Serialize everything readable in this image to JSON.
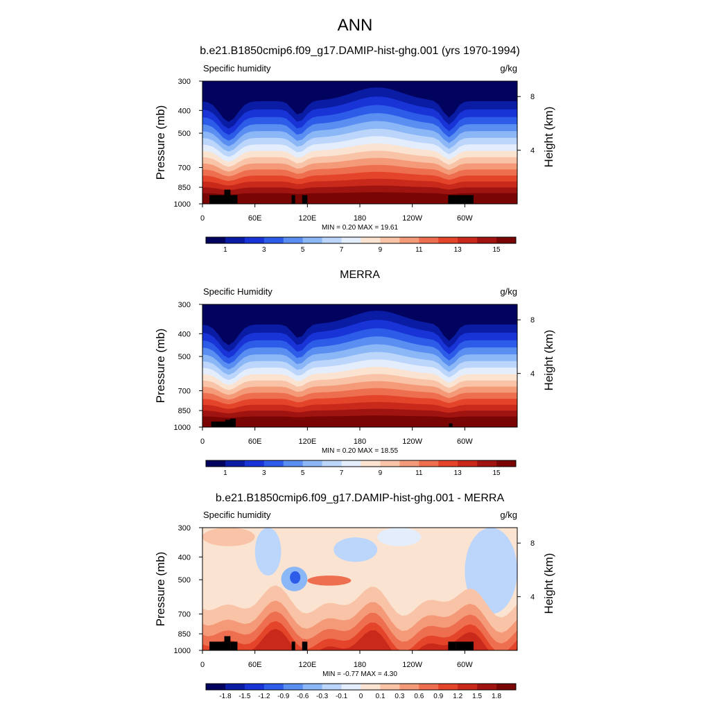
{
  "figure_title": "ANN",
  "chart_data": [
    {
      "type": "heatmap",
      "title": "b.e21.B1850cmip6.f09_g17.DAMIP-hist-ghg.001 (yrs 1970-1994)",
      "variable_label": "Specific humidity",
      "units": "g/kg",
      "xlabel": "",
      "ylabel": "Pressure (mb)",
      "y2label": "Height (km)",
      "x_ticks": [
        "0",
        "60E",
        "120E",
        "180",
        "120W",
        "60W"
      ],
      "x_tick_values": [
        0,
        60,
        120,
        180,
        240,
        300
      ],
      "xlim": [
        0,
        360
      ],
      "y_ticks": [
        "300",
        "400",
        "500",
        "700",
        "850",
        "1000"
      ],
      "y_tick_values": [
        300,
        400,
        500,
        700,
        850,
        1000
      ],
      "ylim": [
        1000,
        300
      ],
      "y_scale": "log",
      "y2_ticks": [
        "8",
        "4"
      ],
      "y2_tick_values": [
        8,
        4
      ],
      "min_max": "MIN =   0.20  MAX =  19.61",
      "min": 0.2,
      "max": 19.61,
      "colorbar": {
        "labels": [
          "1",
          "3",
          "5",
          "7",
          "9",
          "11",
          "13",
          "15"
        ],
        "colors": [
          "#02035e",
          "#0a1ba4",
          "#1934d6",
          "#2d5ce8",
          "#5a8ef0",
          "#8cb7f7",
          "#bcd6fb",
          "#e4edfb",
          "#fbe3d2",
          "#f8c3a6",
          "#f49a78",
          "#ee6f4f",
          "#e4452a",
          "#c9291a",
          "#9f1410",
          "#790505"
        ]
      }
    },
    {
      "type": "heatmap",
      "title": "MERRA",
      "variable_label": "Specific Humidity",
      "units": "g/kg",
      "xlabel": "",
      "ylabel": "Pressure (mb)",
      "y2label": "Height (km)",
      "x_ticks": [
        "0",
        "60E",
        "120E",
        "180",
        "120W",
        "60W"
      ],
      "x_tick_values": [
        0,
        60,
        120,
        180,
        240,
        300
      ],
      "xlim": [
        0,
        360
      ],
      "y_ticks": [
        "300",
        "400",
        "500",
        "700",
        "850",
        "1000"
      ],
      "y_tick_values": [
        300,
        400,
        500,
        700,
        850,
        1000
      ],
      "ylim": [
        1000,
        300
      ],
      "y_scale": "log",
      "y2_ticks": [
        "8",
        "4"
      ],
      "y2_tick_values": [
        8,
        4
      ],
      "min_max": "MIN =   0.20  MAX =  18.55",
      "min": 0.2,
      "max": 18.55,
      "colorbar": {
        "labels": [
          "1",
          "3",
          "5",
          "7",
          "9",
          "11",
          "13",
          "15"
        ],
        "colors": [
          "#02035e",
          "#0a1ba4",
          "#1934d6",
          "#2d5ce8",
          "#5a8ef0",
          "#8cb7f7",
          "#bcd6fb",
          "#e4edfb",
          "#fbe3d2",
          "#f8c3a6",
          "#f49a78",
          "#ee6f4f",
          "#e4452a",
          "#c9291a",
          "#9f1410",
          "#790505"
        ]
      }
    },
    {
      "type": "heatmap",
      "title": "b.e21.B1850cmip6.f09_g17.DAMIP-hist-ghg.001 - MERRA",
      "variable_label": "Specific humidity",
      "units": "g/kg",
      "xlabel": "",
      "ylabel": "Pressure (mb)",
      "y2label": "Height (km)",
      "x_ticks": [
        "0",
        "60E",
        "120E",
        "180",
        "120W",
        "60W"
      ],
      "x_tick_values": [
        0,
        60,
        120,
        180,
        240,
        300
      ],
      "xlim": [
        0,
        360
      ],
      "y_ticks": [
        "300",
        "400",
        "500",
        "700",
        "850",
        "1000"
      ],
      "y_tick_values": [
        300,
        400,
        500,
        700,
        850,
        1000
      ],
      "ylim": [
        1000,
        300
      ],
      "y_scale": "log",
      "y2_ticks": [
        "8",
        "4"
      ],
      "y2_tick_values": [
        8,
        4
      ],
      "min_max": "MIN =  -0.77  MAX =   4.30",
      "min": -0.77,
      "max": 4.3,
      "colorbar": {
        "labels": [
          "-1.8",
          "-1.5",
          "-1.2",
          "-0.9",
          "-0.6",
          "-0.3",
          "-0.1",
          "0",
          "0.1",
          "0.3",
          "0.6",
          "0.9",
          "1.2",
          "1.5",
          "1.8"
        ],
        "colors": [
          "#02035e",
          "#0a1ba4",
          "#1934d6",
          "#2d5ce8",
          "#5a8ef0",
          "#8cb7f7",
          "#bcd6fb",
          "#e4edfb",
          "#fbe3d2",
          "#f8c3a6",
          "#f49a78",
          "#ee6f4f",
          "#e4452a",
          "#c9291a",
          "#9f1410",
          "#790505"
        ]
      }
    }
  ]
}
